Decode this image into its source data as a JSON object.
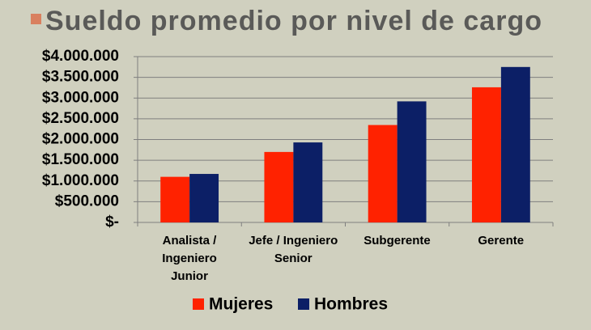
{
  "chart_data": {
    "type": "bar",
    "title": "Sueldo promedio por nivel de cargo",
    "categories": [
      "Analista /\nIngeniero\nJunior",
      "Jefe / Ingeniero\nSenior",
      "Subgerente",
      "Gerente"
    ],
    "series": [
      {
        "name": "Mujeres",
        "color": "#ff2200",
        "values": [
          1100000,
          1700000,
          2350000,
          3260000
        ]
      },
      {
        "name": "Hombres",
        "color": "#0c1f66",
        "values": [
          1170000,
          1930000,
          2920000,
          3750000
        ]
      }
    ],
    "ylim": [
      0,
      4000000
    ],
    "yticks": [
      {
        "value": 0,
        "label": "$-"
      },
      {
        "value": 500000,
        "label": "$500.000"
      },
      {
        "value": 1000000,
        "label": "$1.000.000"
      },
      {
        "value": 1500000,
        "label": "$1.500.000"
      },
      {
        "value": 2000000,
        "label": "$2.000.000"
      },
      {
        "value": 2500000,
        "label": "$2.500.000"
      },
      {
        "value": 3000000,
        "label": "$3.000.000"
      },
      {
        "value": 3500000,
        "label": "$3.500.000"
      },
      {
        "value": 4000000,
        "label": "$4.000.000"
      }
    ],
    "grid": true,
    "legend": "bottom"
  }
}
